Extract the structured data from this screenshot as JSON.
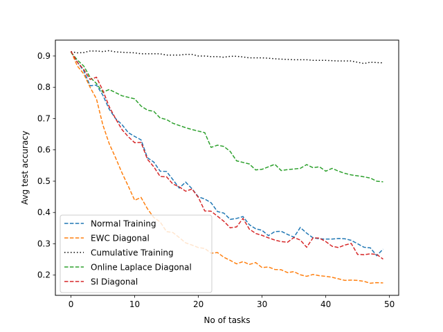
{
  "chart_data": {
    "type": "line",
    "title": "",
    "xlabel": "No of tasks",
    "ylabel": "Avg test accuracy",
    "xlim": [
      -2.45,
      51.45
    ],
    "ylim": [
      0.1353,
      0.9507
    ],
    "xticks": [
      0,
      10,
      20,
      30,
      40,
      50
    ],
    "yticks": [
      0.2,
      0.3,
      0.4,
      0.5,
      0.6,
      0.7,
      0.8,
      0.9
    ],
    "xtick_labels": [
      "0",
      "10",
      "20",
      "30",
      "40",
      "50"
    ],
    "ytick_labels": [
      "0.2",
      "0.3",
      "0.4",
      "0.5",
      "0.6",
      "0.7",
      "0.8",
      "0.9"
    ],
    "grid": false,
    "legend_position": "lower-left",
    "series": [
      {
        "name": "Normal Training",
        "color": "#1f77b4",
        "style": "dashed",
        "values": [
          0.913,
          0.88,
          0.853,
          0.805,
          0.807,
          0.775,
          0.73,
          0.7,
          0.681,
          0.655,
          0.643,
          0.632,
          0.575,
          0.561,
          0.532,
          0.531,
          0.505,
          0.478,
          0.497,
          0.476,
          0.45,
          0.443,
          0.431,
          0.403,
          0.398,
          0.378,
          0.381,
          0.387,
          0.361,
          0.348,
          0.343,
          0.326,
          0.339,
          0.34,
          0.33,
          0.321,
          0.352,
          0.334,
          0.319,
          0.316,
          0.315,
          0.315,
          0.317,
          0.316,
          0.311,
          0.3,
          0.289,
          0.287,
          0.262,
          0.283
        ]
      },
      {
        "name": "EWC Diagonal",
        "color": "#ff7f0e",
        "style": "dashed",
        "values": [
          0.915,
          0.868,
          0.843,
          0.8,
          0.763,
          0.68,
          0.62,
          0.575,
          0.527,
          0.484,
          0.439,
          0.448,
          0.412,
          0.384,
          0.37,
          0.339,
          0.336,
          0.32,
          0.303,
          0.296,
          0.288,
          0.285,
          0.27,
          0.272,
          0.257,
          0.247,
          0.236,
          0.243,
          0.234,
          0.24,
          0.224,
          0.226,
          0.218,
          0.217,
          0.208,
          0.211,
          0.201,
          0.196,
          0.202,
          0.198,
          0.196,
          0.193,
          0.188,
          0.183,
          0.184,
          0.183,
          0.18,
          0.174,
          0.176,
          0.175
        ]
      },
      {
        "name": "Cumulative Training",
        "color": "#000000",
        "style": "dotted",
        "values": [
          0.914,
          0.91,
          0.911,
          0.916,
          0.916,
          0.914,
          0.917,
          0.913,
          0.912,
          0.911,
          0.91,
          0.907,
          0.907,
          0.907,
          0.907,
          0.903,
          0.903,
          0.903,
          0.905,
          0.905,
          0.9,
          0.9,
          0.898,
          0.898,
          0.896,
          0.899,
          0.899,
          0.897,
          0.894,
          0.894,
          0.894,
          0.893,
          0.891,
          0.89,
          0.889,
          0.888,
          0.888,
          0.888,
          0.886,
          0.886,
          0.886,
          0.885,
          0.884,
          0.884,
          0.884,
          0.88,
          0.876,
          0.88,
          0.879,
          0.878
        ]
      },
      {
        "name": "Online Laplace Diagonal",
        "color": "#2ca02c",
        "style": "dashed",
        "values": [
          0.912,
          0.887,
          0.868,
          0.832,
          0.812,
          0.784,
          0.793,
          0.783,
          0.773,
          0.768,
          0.763,
          0.74,
          0.727,
          0.723,
          0.702,
          0.697,
          0.685,
          0.678,
          0.671,
          0.665,
          0.66,
          0.655,
          0.608,
          0.615,
          0.611,
          0.595,
          0.565,
          0.56,
          0.555,
          0.536,
          0.538,
          0.546,
          0.554,
          0.534,
          0.537,
          0.539,
          0.541,
          0.553,
          0.543,
          0.546,
          0.532,
          0.541,
          0.532,
          0.525,
          0.52,
          0.517,
          0.514,
          0.51,
          0.5,
          0.498
        ]
      },
      {
        "name": "SI Diagonal",
        "color": "#d62728",
        "style": "dashed",
        "values": [
          0.915,
          0.88,
          0.857,
          0.825,
          0.832,
          0.79,
          0.738,
          0.7,
          0.665,
          0.642,
          0.623,
          0.624,
          0.57,
          0.546,
          0.515,
          0.514,
          0.491,
          0.482,
          0.468,
          0.475,
          0.448,
          0.405,
          0.404,
          0.388,
          0.372,
          0.351,
          0.354,
          0.381,
          0.347,
          0.333,
          0.327,
          0.319,
          0.312,
          0.307,
          0.305,
          0.32,
          0.312,
          0.289,
          0.319,
          0.318,
          0.307,
          0.292,
          0.288,
          0.296,
          0.301,
          0.266,
          0.265,
          0.268,
          0.266,
          0.251
        ]
      }
    ]
  }
}
